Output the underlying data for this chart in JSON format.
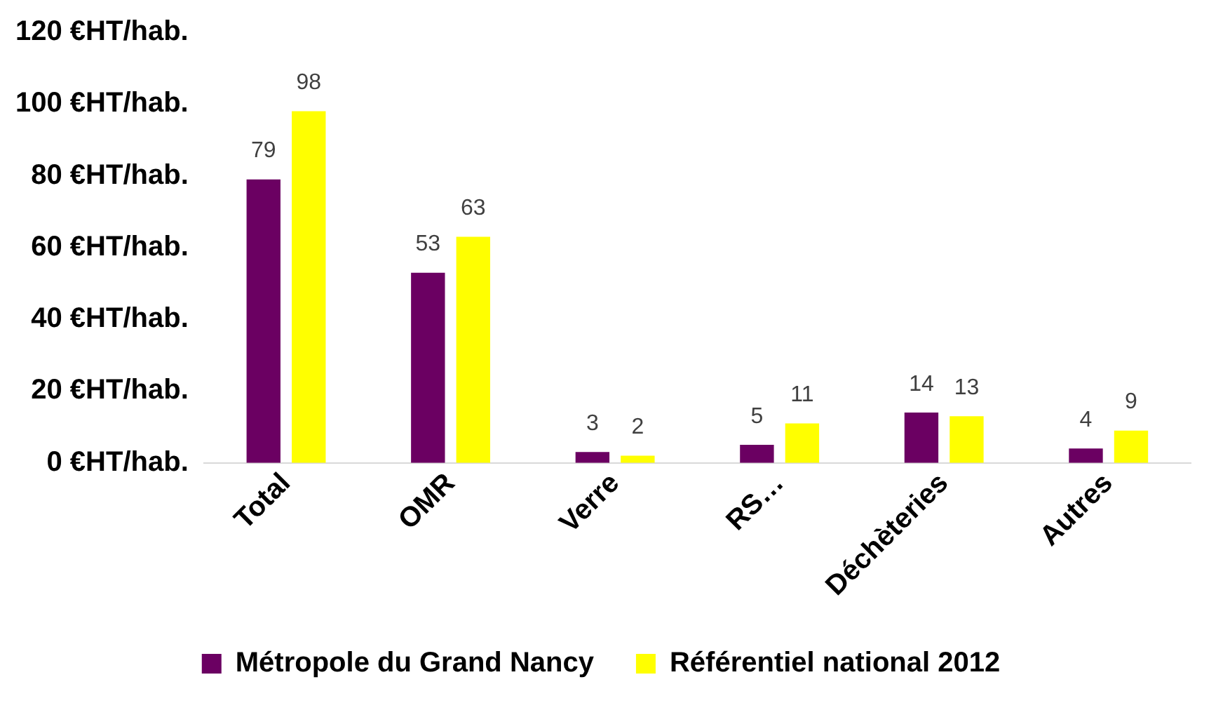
{
  "chart_data": {
    "type": "bar",
    "categories": [
      "Total",
      "OMR",
      "Verre",
      "RS…",
      "Déchèteries",
      "Autres"
    ],
    "series": [
      {
        "name": "Métropole du Grand Nancy",
        "color": "#6b0062",
        "values": [
          79,
          53,
          3,
          5,
          14,
          4
        ]
      },
      {
        "name": "Référentiel national 2012",
        "color": "#ffff00",
        "values": [
          98,
          63,
          2,
          11,
          13,
          9
        ]
      }
    ],
    "ylim": [
      0,
      120
    ],
    "yticks": [
      {
        "value": 0,
        "label": "0 €HT/hab."
      },
      {
        "value": 20,
        "label": "20 €HT/hab."
      },
      {
        "value": 40,
        "label": "40 €HT/hab."
      },
      {
        "value": 60,
        "label": "60 €HT/hab."
      },
      {
        "value": 80,
        "label": "80 €HT/hab."
      },
      {
        "value": 100,
        "label": "100 €HT/hab."
      },
      {
        "value": 120,
        "label": "120 €HT/hab."
      }
    ],
    "data_labels": true,
    "grid": false,
    "legend": "bottom"
  }
}
